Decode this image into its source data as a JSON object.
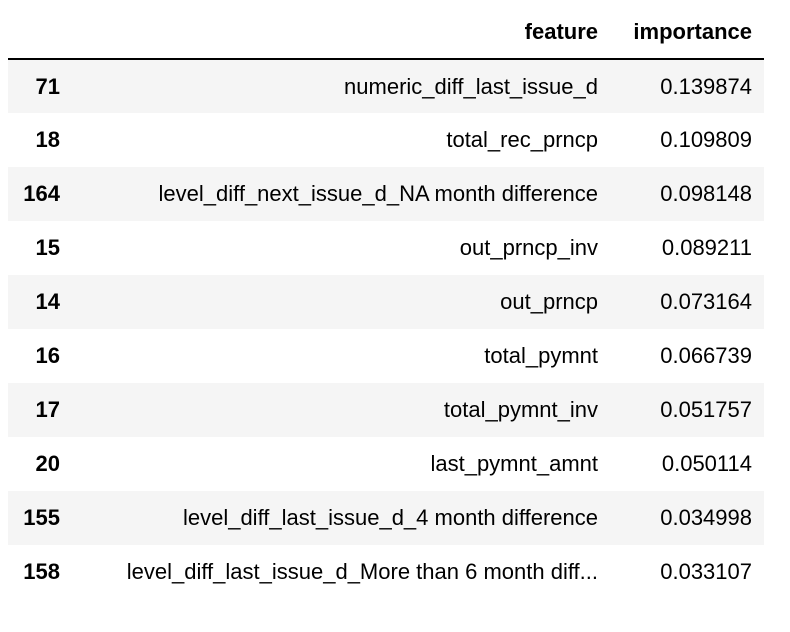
{
  "table": {
    "columns": [
      "",
      "feature",
      "importance"
    ],
    "rows": [
      {
        "index": "71",
        "feature": "numeric_diff_last_issue_d",
        "importance": "0.139874"
      },
      {
        "index": "18",
        "feature": "total_rec_prncp",
        "importance": "0.109809"
      },
      {
        "index": "164",
        "feature": "level_diff_next_issue_d_NA month difference",
        "importance": "0.098148"
      },
      {
        "index": "15",
        "feature": "out_prncp_inv",
        "importance": "0.089211"
      },
      {
        "index": "14",
        "feature": "out_prncp",
        "importance": "0.073164"
      },
      {
        "index": "16",
        "feature": "total_pymnt",
        "importance": "0.066739"
      },
      {
        "index": "17",
        "feature": "total_pymnt_inv",
        "importance": "0.051757"
      },
      {
        "index": "20",
        "feature": "last_pymnt_amnt",
        "importance": "0.050114"
      },
      {
        "index": "155",
        "feature": "level_diff_last_issue_d_4 month difference",
        "importance": "0.034998"
      },
      {
        "index": "158",
        "feature": "level_diff_last_issue_d_More than 6 month diff...",
        "importance": "0.033107"
      }
    ]
  }
}
